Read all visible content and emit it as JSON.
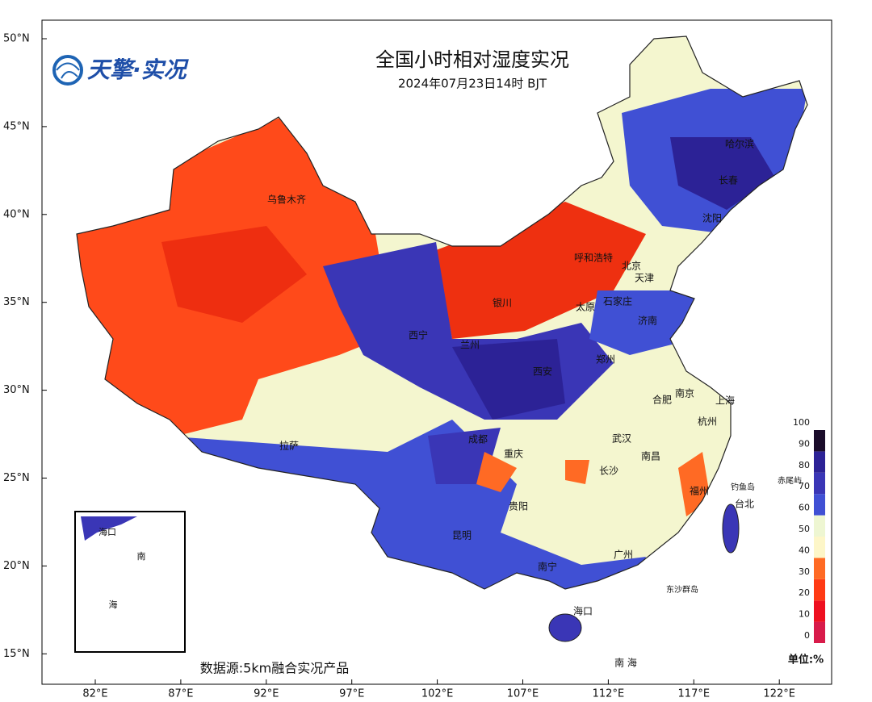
{
  "header": {
    "title": "全国小时相对湿度实况",
    "subtitle": "2024年07月23日14时 BJT",
    "logo": "天擎·实况"
  },
  "source": "数据源:5km融合实况产品",
  "unit_label": "单位:%",
  "lat_labels": [
    "50°N",
    "45°N",
    "40°N",
    "35°N",
    "30°N",
    "25°N",
    "20°N",
    "15°N"
  ],
  "lon_labels": [
    "82°E",
    "87°E",
    "92°E",
    "97°E",
    "102°E",
    "107°E",
    "112°E",
    "117°E",
    "122°E"
  ],
  "cities": [
    "乌鲁木齐",
    "呼和浩特",
    "北京",
    "天津",
    "银川",
    "太原",
    "石家庄",
    "济南",
    "西宁",
    "兰州",
    "西安",
    "郑州",
    "合肥",
    "南京",
    "上海",
    "杭州",
    "拉萨",
    "成都",
    "武汉",
    "重庆",
    "南昌",
    "长沙",
    "福州",
    "台北",
    "贵阳",
    "昆明",
    "广州",
    "南宁",
    "海口",
    "哈尔滨",
    "长春",
    "沈阳"
  ],
  "annotations": [
    "钓鱼岛",
    "赤尾屿",
    "东沙群岛",
    "南 海"
  ],
  "inset": {
    "labels": [
      "南",
      "海",
      "海口"
    ]
  },
  "colorbar": {
    "levels": [
      0,
      10,
      20,
      30,
      40,
      50,
      60,
      70,
      80,
      90,
      100
    ],
    "colors": [
      "#d81b4a",
      "#ee1020",
      "#ff3a14",
      "#ff6a24",
      "#fdf6c8",
      "#eef6d2",
      "#4050d4",
      "#3a36b6",
      "#2c2296",
      "#1a0c2a"
    ]
  }
}
